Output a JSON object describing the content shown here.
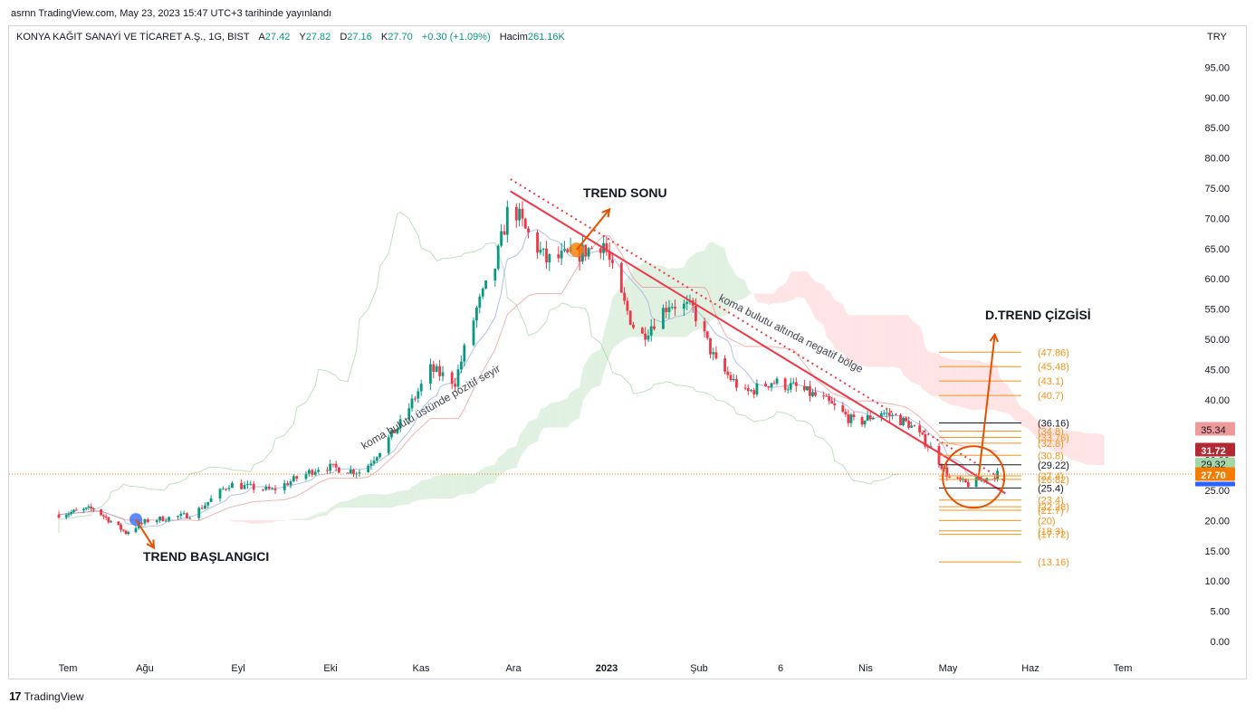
{
  "header": {
    "published": "asrnn TradingView.com, May 23, 2023 15:47 UTC+3 tarihinde yayınlandı"
  },
  "legend": {
    "symbol": "KONYA KAĞIT SANAYİ VE TİCARET A.Ş., 1G, BIST",
    "open_label": "A",
    "open": "27.42",
    "high_label": "Y",
    "high": "27.82",
    "low_label": "D",
    "low": "27.16",
    "close_label": "K",
    "close": "27.70",
    "change": "+0.30 (+1.09%)",
    "volume_label": "Hacim",
    "volume": "261.16K"
  },
  "currency": "TRY",
  "footer": {
    "brand": "TradingView"
  },
  "chart_data": {
    "type": "candlestick",
    "y_axis": {
      "min": 0,
      "max": 95,
      "side": "right",
      "ticks": [
        "95.00",
        "90.00",
        "85.00",
        "80.00",
        "75.00",
        "70.00",
        "65.00",
        "60.00",
        "55.00",
        "50.00",
        "45.00",
        "40.00",
        "35.00",
        "30.00",
        "25.00",
        "20.00",
        "15.00",
        "10.00",
        "5.00",
        "0.00"
      ]
    },
    "x_axis": {
      "ticks": [
        "Tem",
        "Ağu",
        "Eyl",
        "Eki",
        "Kas",
        "Ara",
        "2023",
        "Şub",
        "6",
        "Nis",
        "May",
        "Haz",
        "Tem"
      ]
    },
    "price_path": [
      {
        "d": "2022-07-01",
        "v": 21
      },
      {
        "d": "2022-07-15",
        "v": 22
      },
      {
        "d": "2022-07-28",
        "v": 18
      },
      {
        "d": "2022-08-05",
        "v": 20
      },
      {
        "d": "2022-08-20",
        "v": 21
      },
      {
        "d": "2022-09-01",
        "v": 26
      },
      {
        "d": "2022-09-15",
        "v": 25
      },
      {
        "d": "2022-10-01",
        "v": 29
      },
      {
        "d": "2022-10-15",
        "v": 28
      },
      {
        "d": "2022-10-28",
        "v": 36
      },
      {
        "d": "2022-11-07",
        "v": 45
      },
      {
        "d": "2022-11-15",
        "v": 43
      },
      {
        "d": "2022-11-22",
        "v": 55
      },
      {
        "d": "2022-11-28",
        "v": 62
      },
      {
        "d": "2022-12-03",
        "v": 73
      },
      {
        "d": "2022-12-08",
        "v": 68
      },
      {
        "d": "2022-12-15",
        "v": 63
      },
      {
        "d": "2022-12-25",
        "v": 64
      },
      {
        "d": "2023-01-03",
        "v": 66
      },
      {
        "d": "2023-01-08",
        "v": 58
      },
      {
        "d": "2023-01-15",
        "v": 50
      },
      {
        "d": "2023-01-25",
        "v": 56
      },
      {
        "d": "2023-02-02",
        "v": 55
      },
      {
        "d": "2023-02-10",
        "v": 46
      },
      {
        "d": "2023-02-20",
        "v": 41
      },
      {
        "d": "2023-03-01",
        "v": 43
      },
      {
        "d": "2023-03-10",
        "v": 42
      },
      {
        "d": "2023-03-20",
        "v": 40
      },
      {
        "d": "2023-04-01",
        "v": 36
      },
      {
        "d": "2023-04-10",
        "v": 38
      },
      {
        "d": "2023-04-20",
        "v": 36
      },
      {
        "d": "2023-04-28",
        "v": 32
      },
      {
        "d": "2023-05-05",
        "v": 27
      },
      {
        "d": "2023-05-12",
        "v": 26
      },
      {
        "d": "2023-05-18",
        "v": 27
      },
      {
        "d": "2023-05-23",
        "v": 27.7
      }
    ],
    "price_labels": [
      {
        "value": "35.34",
        "color": "#ef9a9a",
        "text_color": "#131722"
      },
      {
        "value": "31.72",
        "color": "#b22833",
        "text_color": "#ffffff"
      },
      {
        "value": "29.32",
        "color": "#a5d6a7",
        "text_color": "#131722"
      },
      {
        "value": "27.70",
        "color": "#f57c00",
        "text_color": "#ffffff"
      },
      {
        "value": "",
        "color": "#2962ff",
        "text_color": "#ffffff"
      }
    ],
    "current_price": 27.7,
    "levels": [
      {
        "label": "(47.86)",
        "v": 47.86,
        "color": "#f7931a"
      },
      {
        "label": "(45.48)",
        "v": 45.48,
        "color": "#f7931a"
      },
      {
        "label": "(43.1)",
        "v": 43.1,
        "color": "#f7931a"
      },
      {
        "label": "(40.7)",
        "v": 40.7,
        "color": "#f7931a"
      },
      {
        "label": "(36.16)",
        "v": 36.16,
        "color": "#131722"
      },
      {
        "label": "(34.8)",
        "v": 34.8,
        "color": "#f7931a"
      },
      {
        "label": "(33.76)",
        "v": 33.76,
        "color": "#f7931a"
      },
      {
        "label": "(32.8)",
        "v": 32.8,
        "color": "#f7931a"
      },
      {
        "label": "(30.8)",
        "v": 30.8,
        "color": "#f7931a"
      },
      {
        "label": "(29.22)",
        "v": 29.22,
        "color": "#131722"
      },
      {
        "label": "(27.4)",
        "v": 27.4,
        "color": "#f7931a"
      },
      {
        "label": "(26.82)",
        "v": 26.82,
        "color": "#f7931a"
      },
      {
        "label": "(25.4)",
        "v": 25.4,
        "color": "#131722"
      },
      {
        "label": "(23.4)",
        "v": 23.4,
        "color": "#f7931a"
      },
      {
        "label": "(22.28)",
        "v": 22.28,
        "color": "#f7931a"
      },
      {
        "label": "(21.7)",
        "v": 21.7,
        "color": "#f7931a"
      },
      {
        "label": "(20)",
        "v": 20,
        "color": "#f7931a"
      },
      {
        "label": "(18.3)",
        "v": 18.3,
        "color": "#f7931a"
      },
      {
        "label": "(17.72)",
        "v": 17.72,
        "color": "#f7931a"
      },
      {
        "label": "(13.16)",
        "v": 13.16,
        "color": "#f7931a"
      }
    ],
    "annotations": [
      {
        "text": "TREND BAŞLANGICI"
      },
      {
        "text": "TREND SONU"
      },
      {
        "text": "D.TREND ÇİZGİSİ"
      },
      {
        "text": "koma bulutu üstünde pozitif seyir"
      },
      {
        "text": "koma bulutu altında negatif bölge"
      }
    ],
    "colors": {
      "up": "#089981",
      "down": "#f23645",
      "trend": "#f23645",
      "fib": "#f7931a",
      "cloud_bull": "#c8e6c9",
      "cloud_bear": "#ffcdd2"
    }
  }
}
